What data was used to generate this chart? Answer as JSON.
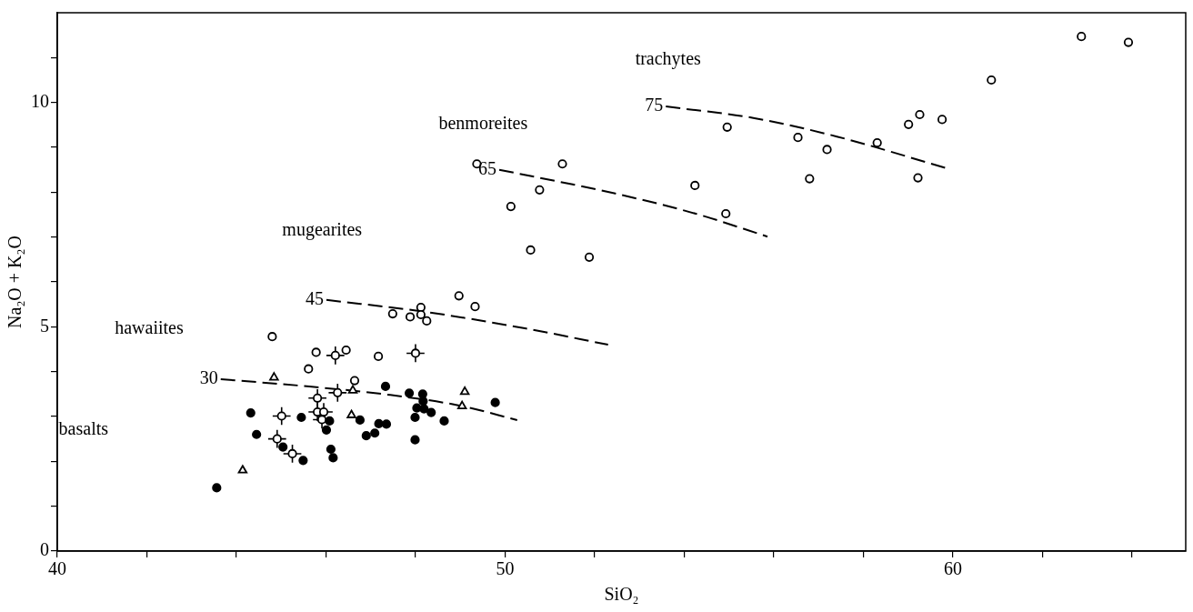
{
  "chart_data": {
    "type": "scatter",
    "xlabel": "SiO₂",
    "ylabel": "Na₂O + K₂O",
    "xlim": [
      40,
      65.2
    ],
    "ylim": [
      0,
      12
    ],
    "xticks": [
      40,
      {
        "value": 42,
        "label": null
      },
      {
        "value": 44,
        "label": null
      },
      {
        "value": 46,
        "label": null
      },
      {
        "value": 48,
        "label": null
      },
      50,
      {
        "value": 52,
        "label": null
      },
      {
        "value": 54,
        "label": null
      },
      {
        "value": 56,
        "label": null
      },
      {
        "value": 58,
        "label": null
      },
      60,
      {
        "value": 62,
        "label": null
      },
      {
        "value": 64,
        "label": null
      }
    ],
    "yticks": [
      0,
      {
        "value": 1,
        "label": null
      },
      {
        "value": 2,
        "label": null
      },
      {
        "value": 3,
        "label": null
      },
      {
        "value": 4,
        "label": null
      },
      5,
      {
        "value": 6,
        "label": null
      },
      {
        "value": 7,
        "label": null
      },
      {
        "value": 8,
        "label": null
      },
      {
        "value": 9,
        "label": null
      },
      10,
      {
        "value": 11,
        "label": null
      }
    ],
    "grid": false,
    "series": [
      {
        "marker": "circle",
        "color": "#000000",
        "x": [
          43.56,
          44.32,
          44.45,
          45.04,
          45.45,
          45.49,
          46.08,
          46.01,
          46.11,
          46.16,
          46.76,
          46.9,
          47.09,
          47.18,
          47.35,
          47.33,
          47.86,
          47.99,
          47.99,
          48.03,
          48.16,
          48.17,
          48.19,
          48.35,
          48.64,
          49.78
        ],
        "values": [
          1.41,
          3.08,
          2.6,
          2.32,
          2.98,
          2.02,
          2.9,
          2.7,
          2.27,
          2.08,
          2.92,
          2.57,
          2.63,
          2.84,
          2.83,
          3.67,
          3.52,
          2.98,
          2.48,
          3.19,
          3.5,
          3.34,
          3.17,
          3.09,
          2.9,
          3.31
        ]
      },
      {
        "marker": "circle",
        "color": "#ffffff",
        "x": [
          44.8,
          45.78,
          46.45,
          45.61,
          47.17,
          46.64,
          47.49,
          47.88,
          48.12,
          48.12,
          48.25,
          48.97,
          49.33,
          49.37,
          51.28,
          50.77,
          50.13,
          50.57,
          51.88,
          54.24,
          54.93,
          54.96,
          56.54,
          57.19,
          56.8,
          58.31,
          59.01,
          59.26,
          59.22,
          59.76,
          60.86,
          62.87,
          63.92
        ],
        "values": [
          4.78,
          4.43,
          4.48,
          4.06,
          4.34,
          3.8,
          5.29,
          5.22,
          5.43,
          5.27,
          5.13,
          5.69,
          5.45,
          8.63,
          8.63,
          8.05,
          7.68,
          6.71,
          6.55,
          8.15,
          7.52,
          9.45,
          9.22,
          8.95,
          8.3,
          9.1,
          9.51,
          9.73,
          8.32,
          9.62,
          10.5,
          11.47,
          11.34
        ]
      },
      {
        "marker": "circle",
        "color": "#ffffff",
        "x": [
          46.21,
          48.0,
          46.26,
          45.81,
          45.81,
          45.95,
          45.91,
          45.01,
          44.91,
          45.25
        ],
        "values": [
          4.36,
          4.41,
          3.53,
          3.41,
          3.1,
          3.1,
          2.93,
          3.01,
          2.5,
          2.17
        ],
        "errors": [
          0.2,
          0.2,
          0.2,
          0.2,
          0.2,
          0.2,
          0.2,
          0.2,
          0.2,
          0.2
        ],
        "xerrors": [
          0.2,
          0.2,
          0.2,
          0.2,
          0.2,
          0.2,
          0.2,
          0.2,
          0.2,
          0.2
        ]
      },
      {
        "marker": "triangle",
        "color": "#ffffff",
        "x": [
          44.84,
          44.14,
          46.6,
          46.57,
          49.1,
          49.04
        ],
        "values": [
          3.87,
          1.8,
          3.58,
          3.03,
          3.55,
          3.23
        ]
      },
      {
        "type": "line",
        "name": "30",
        "marker": "none",
        "line_style": "dashed",
        "color": "#000000",
        "x": [
          43.65,
          45.5,
          47.43,
          49.0,
          50.27
        ],
        "values": [
          3.83,
          3.68,
          3.48,
          3.24,
          2.92
        ]
      },
      {
        "type": "line",
        "name": "45",
        "marker": "none",
        "line_style": "dashed",
        "color": "#000000",
        "x": [
          46.01,
          48.3,
          50.47,
          52.3
        ],
        "values": [
          5.6,
          5.32,
          4.96,
          4.6
        ]
      },
      {
        "type": "line",
        "name": "65",
        "marker": "none",
        "line_style": "dashed",
        "color": "#000000",
        "x": [
          49.87,
          52.46,
          54.26,
          55.86
        ],
        "values": [
          8.5,
          7.97,
          7.52,
          7.01
        ]
      },
      {
        "type": "line",
        "name": "75",
        "marker": "none",
        "line_style": "dashed",
        "color": "#000000",
        "x": [
          53.59,
          55.57,
          57.41,
          59.84
        ],
        "values": [
          9.91,
          9.65,
          9.24,
          8.54
        ]
      }
    ],
    "annotations": [
      "trachytes",
      "benmoreites",
      "mugearites",
      "hawaiites",
      "basalts"
    ]
  }
}
